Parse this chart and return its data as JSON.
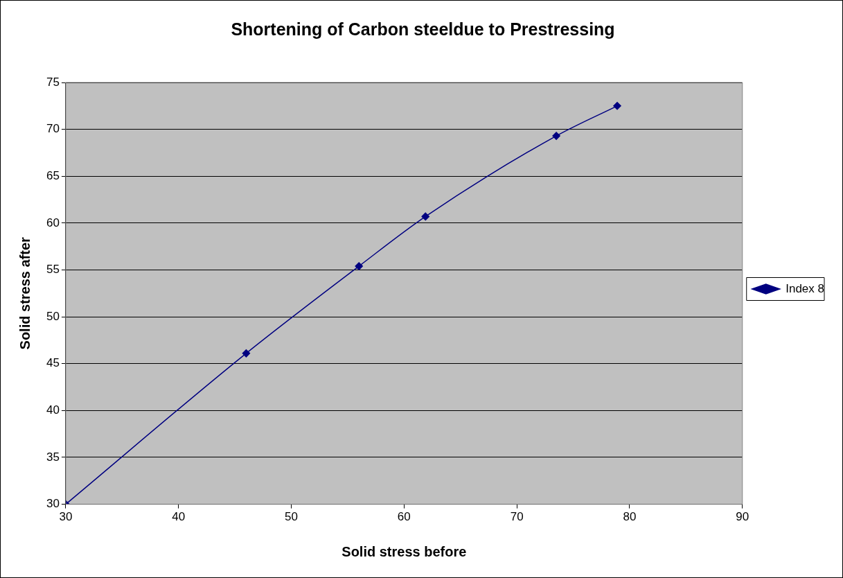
{
  "chart_data": {
    "type": "line",
    "title": "Shortening of Carbon steeldue to Prestressing",
    "xlabel": "Solid stress before",
    "ylabel": "Solid stress after",
    "x": [
      30,
      46,
      56,
      61.9,
      73.5,
      78.9
    ],
    "series": [
      {
        "name": "Index 8",
        "color": "#000080",
        "values": [
          30,
          46.1,
          55.4,
          60.7,
          69.3,
          72.5
        ]
      }
    ],
    "xlim": [
      30,
      90
    ],
    "xticks": [
      30,
      40,
      50,
      60,
      70,
      80,
      90
    ],
    "ylim": [
      30,
      75
    ],
    "yticks": [
      30,
      35,
      40,
      45,
      50,
      55,
      60,
      65,
      70,
      75
    ],
    "grid": "y",
    "legend": "right",
    "marker": "diamond",
    "line_style": "solid"
  }
}
